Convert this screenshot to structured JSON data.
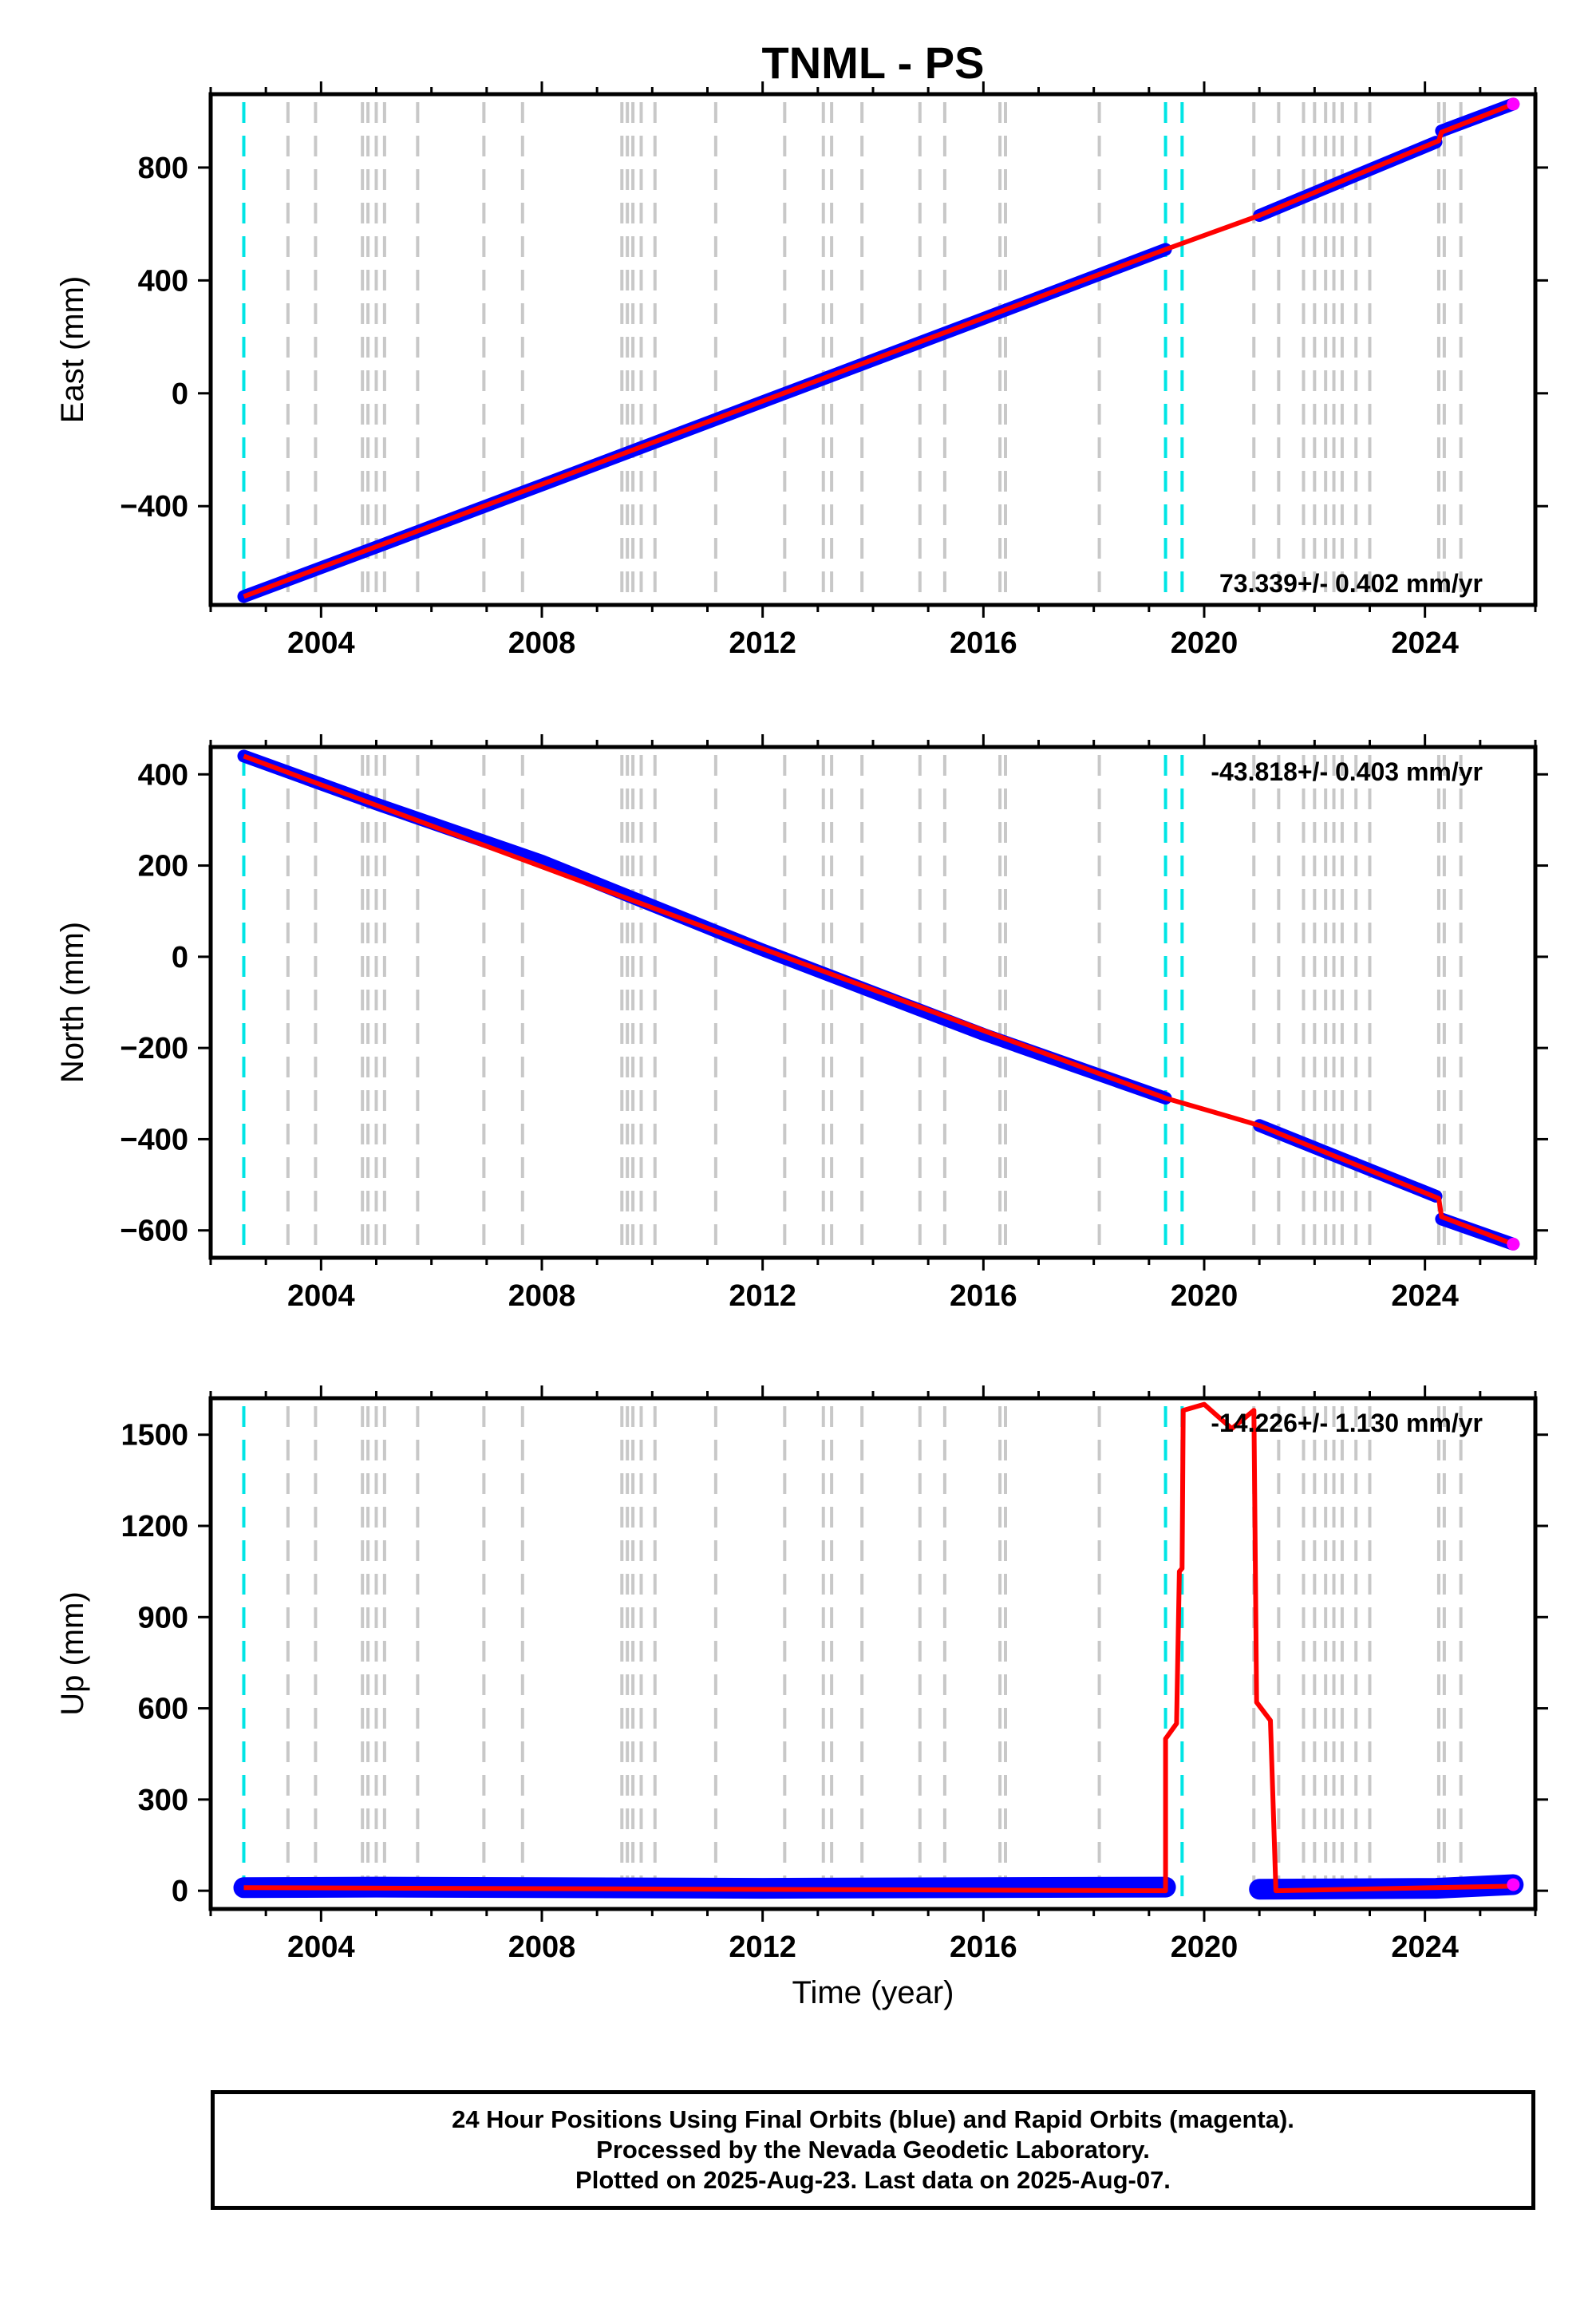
{
  "title": "TNML - PS",
  "footer": {
    "line1": "24 Hour Positions Using Final Orbits (blue) and Rapid Orbits (magenta).",
    "line2": "Processed by the Nevada Geodetic Laboratory.",
    "line3": "Plotted on 2025-Aug-23. Last data on 2025-Aug-07."
  },
  "colors": {
    "final_orbits": "#0000ff",
    "rapid_orbits": "#ff00ff",
    "model_fit": "#ff0000",
    "antenna_change": "#00e5e5",
    "equipment_event": "#c8c8c8"
  },
  "chart_data": [
    {
      "type": "line",
      "title": "TNML - PS",
      "xlabel": "",
      "ylabel": "East (mm)",
      "xlim": [
        2002.0,
        2026.0
      ],
      "ylim": [
        -750,
        1060
      ],
      "xticks": [
        2004,
        2008,
        2012,
        2016,
        2020,
        2024
      ],
      "yticks": [
        -400,
        0,
        400,
        800
      ],
      "rate_label": "73.339+/- 0.402 mm/yr",
      "rate_position": "bottom-right",
      "grid": false,
      "series": [
        {
          "values": [
            [
              2002.6,
              -720
            ],
            [
              2005.0,
              -545
            ],
            [
              2008.0,
              -325
            ],
            [
              2012.0,
              -30
            ],
            [
              2016.0,
              265
            ],
            [
              2019.3,
              510
            ]
          ]
        },
        {
          "values": [
            [
              2021.0,
              630
            ],
            [
              2024.2,
              890
            ]
          ]
        },
        {
          "values": [
            [
              2024.3,
              930
            ],
            [
              2025.6,
              1025
            ]
          ]
        },
        {
          "values": [
            [
              2002.6,
              -720
            ],
            [
              2019.3,
              510
            ],
            [
              2021.0,
              630
            ],
            [
              2024.25,
              895
            ],
            [
              2024.3,
              925
            ],
            [
              2025.6,
              1025
            ]
          ]
        }
      ],
      "events": {
        "cyan": [
          2002.6,
          2019.3,
          2019.6
        ],
        "gray": [
          2003.4,
          2003.9,
          2004.75,
          2004.85,
          2005.0,
          2005.15,
          2005.75,
          2006.95,
          2007.65,
          2009.45,
          2009.55,
          2009.65,
          2009.8,
          2010.05,
          2011.15,
          2012.4,
          2013.1,
          2013.25,
          2013.8,
          2014.85,
          2015.3,
          2016.3,
          2016.4,
          2018.1,
          2020.9,
          2021.35,
          2021.8,
          2022.0,
          2022.2,
          2022.35,
          2022.5,
          2022.75,
          2023.0,
          2024.25,
          2024.35,
          2024.65
        ]
      }
    },
    {
      "type": "line",
      "xlabel": "",
      "ylabel": "North (mm)",
      "xlim": [
        2002.0,
        2026.0
      ],
      "ylim": [
        -660,
        460
      ],
      "xticks": [
        2004,
        2008,
        2012,
        2016,
        2020,
        2024
      ],
      "yticks": [
        -600,
        -400,
        -200,
        0,
        200,
        400
      ],
      "rate_label": "-43.818+/- 0.403 mm/yr",
      "rate_position": "top-right",
      "grid": false,
      "series": [
        {
          "values": [
            [
              2002.6,
              440
            ],
            [
              2005.0,
              335
            ],
            [
              2008.0,
              210
            ],
            [
              2012.0,
              15
            ],
            [
              2016.0,
              -170
            ],
            [
              2019.3,
              -310
            ]
          ]
        },
        {
          "values": [
            [
              2021.0,
              -370
            ],
            [
              2024.2,
              -525
            ]
          ]
        },
        {
          "values": [
            [
              2024.3,
              -575
            ],
            [
              2025.6,
              -630
            ]
          ]
        },
        {
          "values": [
            [
              2002.6,
              440
            ],
            [
              2019.3,
              -310
            ],
            [
              2020.3,
              -345
            ],
            [
              2021.0,
              -370
            ],
            [
              2024.25,
              -530
            ],
            [
              2024.3,
              -570
            ],
            [
              2025.6,
              -630
            ]
          ]
        }
      ]
    },
    {
      "type": "line",
      "xlabel": "Time (year)",
      "ylabel": "Up (mm)",
      "xlim": [
        2002.0,
        2026.0
      ],
      "ylim": [
        -60,
        1620
      ],
      "xticks": [
        2004,
        2008,
        2012,
        2016,
        2020,
        2024
      ],
      "yticks": [
        0,
        300,
        600,
        900,
        1200,
        1500
      ],
      "rate_label": "-14.226+/- 1.130 mm/yr",
      "rate_position": "top-right",
      "grid": false,
      "series": [
        {
          "values": [
            [
              2002.6,
              10
            ],
            [
              2005.0,
              12
            ],
            [
              2008.0,
              10
            ],
            [
              2012.0,
              8
            ],
            [
              2016.0,
              10
            ],
            [
              2019.3,
              12
            ]
          ]
        },
        {
          "values": [
            [
              2021.0,
              5
            ],
            [
              2024.2,
              8
            ],
            [
              2025.6,
              20
            ]
          ]
        },
        {
          "values": [
            [
              2002.6,
              10
            ],
            [
              2019.3,
              0
            ],
            [
              2019.3,
              500
            ],
            [
              2019.5,
              550
            ],
            [
              2019.55,
              1050
            ],
            [
              2019.6,
              1060
            ],
            [
              2019.62,
              1580
            ],
            [
              2020.0,
              1600
            ],
            [
              2020.5,
              1520
            ],
            [
              2020.9,
              1580
            ],
            [
              2020.95,
              620
            ],
            [
              2021.2,
              560
            ],
            [
              2021.3,
              0
            ],
            [
              2025.6,
              15
            ]
          ]
        }
      ]
    }
  ]
}
